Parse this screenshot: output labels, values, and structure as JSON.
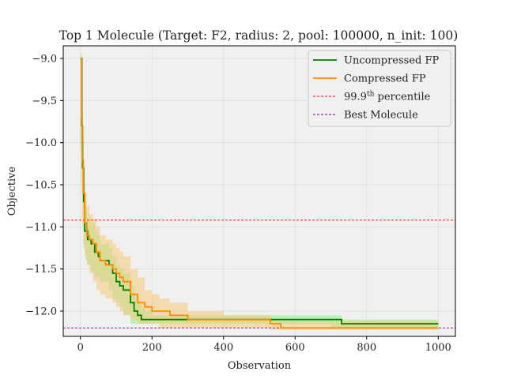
{
  "chart_data": {
    "type": "line",
    "title": "Top 1 Molecule (Target: F2, radius: 2, pool: 100000,  n_init: 100)",
    "xlabel": "Observation",
    "ylabel": "Objective",
    "xlim": [
      -48,
      1048
    ],
    "ylim": [
      -12.3,
      -8.85
    ],
    "xticks": [
      0,
      200,
      400,
      600,
      800,
      1000
    ],
    "xtick_labels": [
      "0",
      "200",
      "400",
      "600",
      "800",
      "1000"
    ],
    "yticks": [
      -9.0,
      -9.5,
      -10.0,
      -10.5,
      -11.0,
      -11.5,
      -12.0
    ],
    "ytick_labels": [
      "−9.0",
      "−9.5",
      "−10.0",
      "−10.5",
      "−11.0",
      "−11.5",
      "−12.0"
    ],
    "grid": true,
    "background": "#f0f0f0",
    "legend_position": "top-right",
    "series": [
      {
        "name": "Uncompressed FP",
        "color": "#008000",
        "band_color": "#90ee90",
        "x": [
          0,
          4,
          6,
          9,
          12,
          15,
          20,
          30,
          40,
          50,
          55,
          80,
          90,
          100,
          110,
          120,
          140,
          150,
          160,
          170,
          180,
          200,
          260,
          320,
          400,
          500,
          600,
          700,
          730,
          750,
          900,
          1000
        ],
        "y": [
          -9.0,
          -9.8,
          -10.3,
          -10.7,
          -11.05,
          -11.05,
          -11.15,
          -11.2,
          -11.3,
          -11.35,
          -11.4,
          -11.45,
          -11.55,
          -11.65,
          -11.7,
          -11.75,
          -11.9,
          -12.0,
          -12.05,
          -12.1,
          -12.1,
          -12.1,
          -12.1,
          -12.1,
          -12.1,
          -12.1,
          -12.1,
          -12.1,
          -12.15,
          -12.15,
          -12.15,
          -12.15
        ],
        "lower": [
          -9.1,
          -10.1,
          -10.6,
          -11.0,
          -11.25,
          -11.3,
          -11.4,
          -11.45,
          -11.55,
          -11.6,
          -11.6,
          -11.65,
          -11.75,
          -11.85,
          -11.9,
          -11.95,
          -12.05,
          -12.15,
          -12.15,
          -12.15,
          -12.15,
          -12.15,
          -12.15,
          -12.15,
          -12.15,
          -12.15,
          -12.15,
          -12.15,
          -12.2,
          -12.2,
          -12.2,
          -12.2
        ],
        "upper": [
          -8.95,
          -9.5,
          -10.0,
          -10.45,
          -10.8,
          -10.8,
          -10.9,
          -10.95,
          -11.05,
          -11.1,
          -11.2,
          -11.25,
          -11.35,
          -11.45,
          -11.5,
          -11.55,
          -11.7,
          -11.8,
          -11.9,
          -11.95,
          -12.0,
          -12.05,
          -12.05,
          -12.05,
          -12.05,
          -12.05,
          -12.05,
          -12.05,
          -12.1,
          -12.1,
          -12.1,
          -12.1
        ]
      },
      {
        "name": "Compressed FP",
        "color": "#ff8c00",
        "band_color": "#f5c97a",
        "x": [
          0,
          3,
          5,
          8,
          12,
          18,
          25,
          35,
          45,
          55,
          70,
          90,
          100,
          110,
          120,
          140,
          160,
          180,
          200,
          220,
          250,
          300,
          400,
          500,
          530,
          560,
          600,
          700,
          800,
          900,
          1000
        ],
        "y": [
          -9.0,
          -9.7,
          -10.2,
          -10.6,
          -10.95,
          -11.1,
          -11.15,
          -11.2,
          -11.3,
          -11.4,
          -11.45,
          -11.5,
          -11.55,
          -11.6,
          -11.65,
          -11.8,
          -11.9,
          -11.95,
          -12.0,
          -12.0,
          -12.05,
          -12.1,
          -12.1,
          -12.1,
          -12.15,
          -12.2,
          -12.2,
          -12.2,
          -12.2,
          -12.2,
          -12.2
        ],
        "lower": [
          -9.2,
          -10.0,
          -10.5,
          -10.95,
          -11.2,
          -11.35,
          -11.45,
          -11.55,
          -11.65,
          -11.75,
          -11.8,
          -11.85,
          -11.9,
          -11.95,
          -12.0,
          -12.05,
          -12.1,
          -12.15,
          -12.15,
          -12.15,
          -12.2,
          -12.2,
          -12.2,
          -12.2,
          -12.2,
          -12.22,
          -12.22,
          -12.22,
          -12.22,
          -12.22,
          -12.22
        ],
        "upper": [
          -8.95,
          -9.4,
          -9.9,
          -10.25,
          -10.6,
          -10.75,
          -10.85,
          -10.9,
          -11.0,
          -11.1,
          -11.15,
          -11.2,
          -11.25,
          -11.3,
          -11.35,
          -11.5,
          -11.6,
          -11.75,
          -11.8,
          -11.85,
          -11.9,
          -12.0,
          -12.05,
          -12.05,
          -12.1,
          -12.12,
          -12.12,
          -12.12,
          -12.12,
          -12.12,
          -12.12
        ]
      }
    ],
    "reference_lines": [
      {
        "name": "99.9th percentile",
        "label_base": "99.9",
        "label_sup": "th",
        "label_rest": " percentile",
        "y": -10.92,
        "color": "#ff0000"
      },
      {
        "name": "Best Molecule",
        "label_base": "Best Molecule",
        "label_sup": "",
        "label_rest": "",
        "y": -12.2,
        "color": "#800080"
      }
    ]
  }
}
